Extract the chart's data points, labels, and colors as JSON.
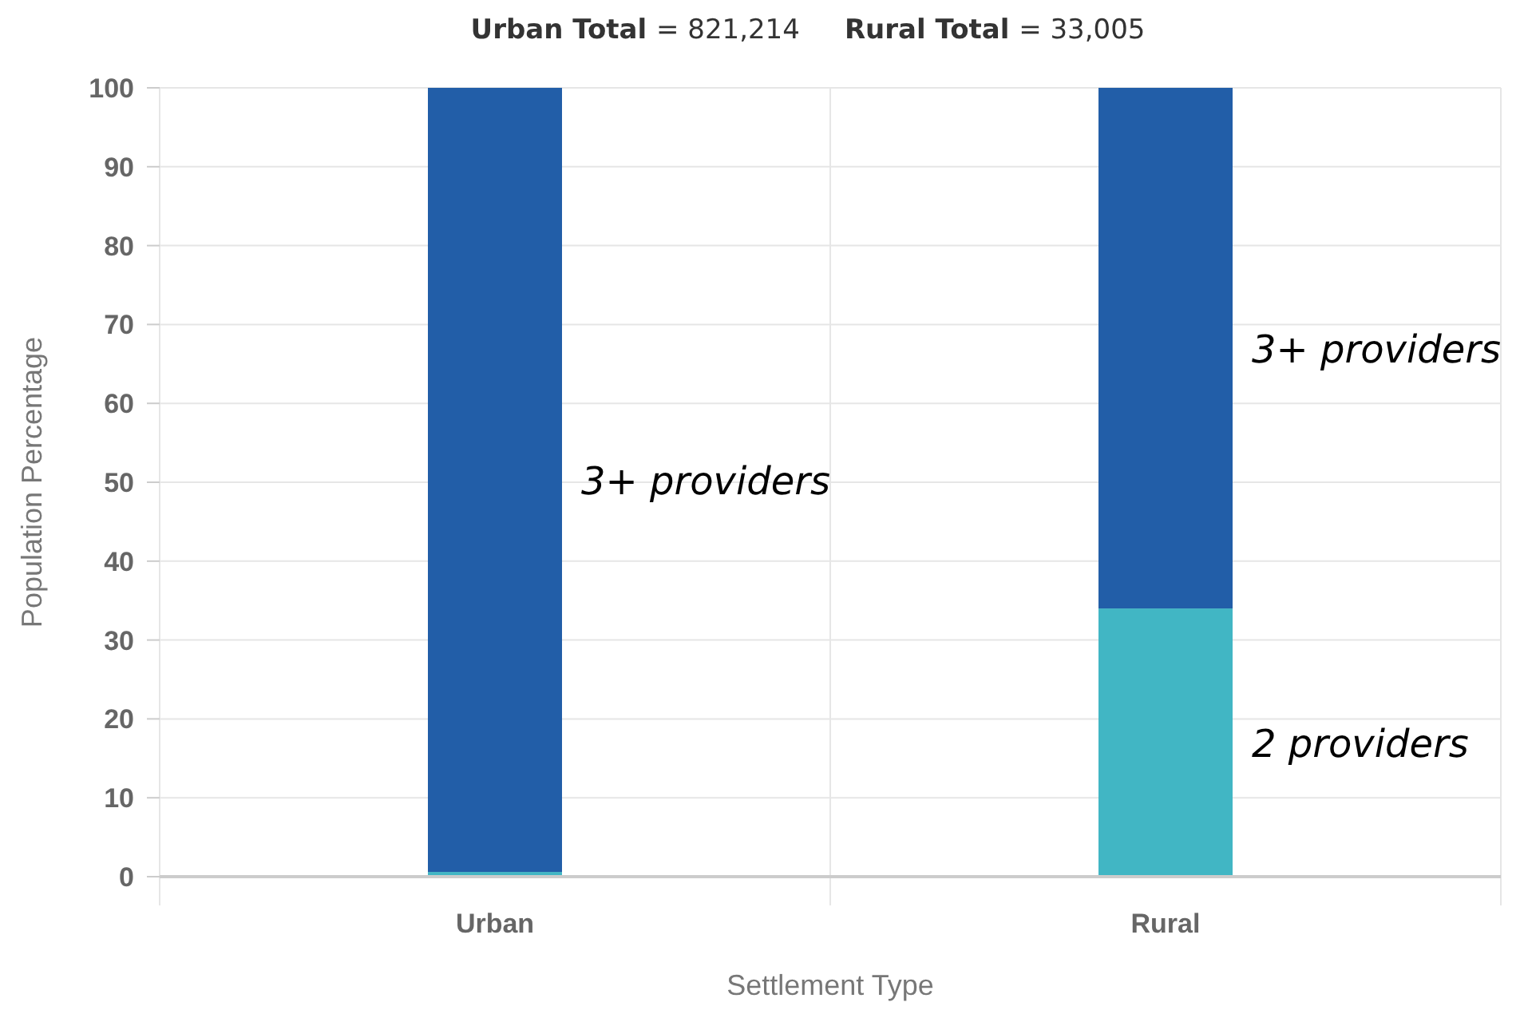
{
  "chart_data": {
    "type": "bar",
    "stacked": true,
    "title": "Urban Total = 821,214      Rural Total = 33,005",
    "xlabel": "Settlement Type",
    "ylabel": "Population Percentage",
    "categories": [
      "Urban",
      "Rural"
    ],
    "series": [
      {
        "name": "2 providers",
        "color": "#41b6c4",
        "values": [
          0.6,
          34
        ]
      },
      {
        "name": "3+ providers",
        "color": "#225ea8",
        "values": [
          99.4,
          66
        ]
      }
    ],
    "ylim": [
      0,
      100
    ],
    "yticks": [
      0,
      10,
      20,
      30,
      40,
      50,
      60,
      70,
      80,
      90,
      100
    ],
    "grid": true
  }
}
